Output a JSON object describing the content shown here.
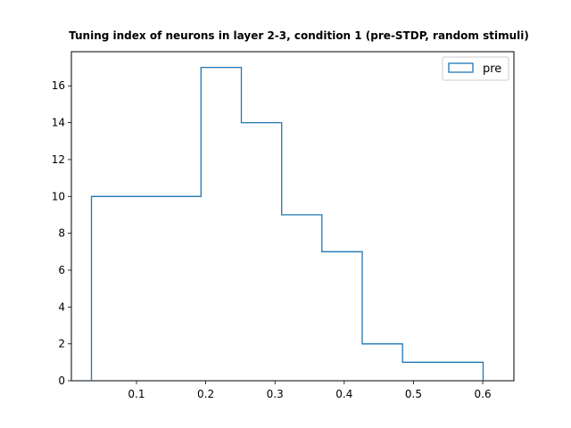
{
  "chart_data": {
    "type": "histogram",
    "title": "Tuning index of neurons in layer 2-3, condition 1 (pre-STDP, random stimuli)",
    "xlabel": "",
    "ylabel": "",
    "bin_edges": [
      0.035,
      0.1932,
      0.2514,
      0.3096,
      0.3678,
      0.426,
      0.4842,
      0.5424,
      0.6006
    ],
    "series": [
      {
        "name": "pre",
        "color": "#1f77b4",
        "histtype": "step",
        "counts": [
          10,
          17,
          14,
          9,
          7,
          2,
          1,
          1
        ]
      }
    ],
    "xlim": [
      0.006,
      0.645
    ],
    "ylim": [
      0,
      17.85
    ],
    "xticks": [
      0.1,
      0.2,
      0.3,
      0.4,
      0.5,
      0.6
    ],
    "xtick_labels": [
      "0.1",
      "0.2",
      "0.3",
      "0.4",
      "0.5",
      "0.6"
    ],
    "yticks": [
      0,
      2,
      4,
      6,
      8,
      10,
      12,
      14,
      16
    ],
    "ytick_labels": [
      "0",
      "2",
      "4",
      "6",
      "8",
      "10",
      "12",
      "14",
      "16"
    ],
    "grid": false,
    "legend_position": "top-right"
  }
}
